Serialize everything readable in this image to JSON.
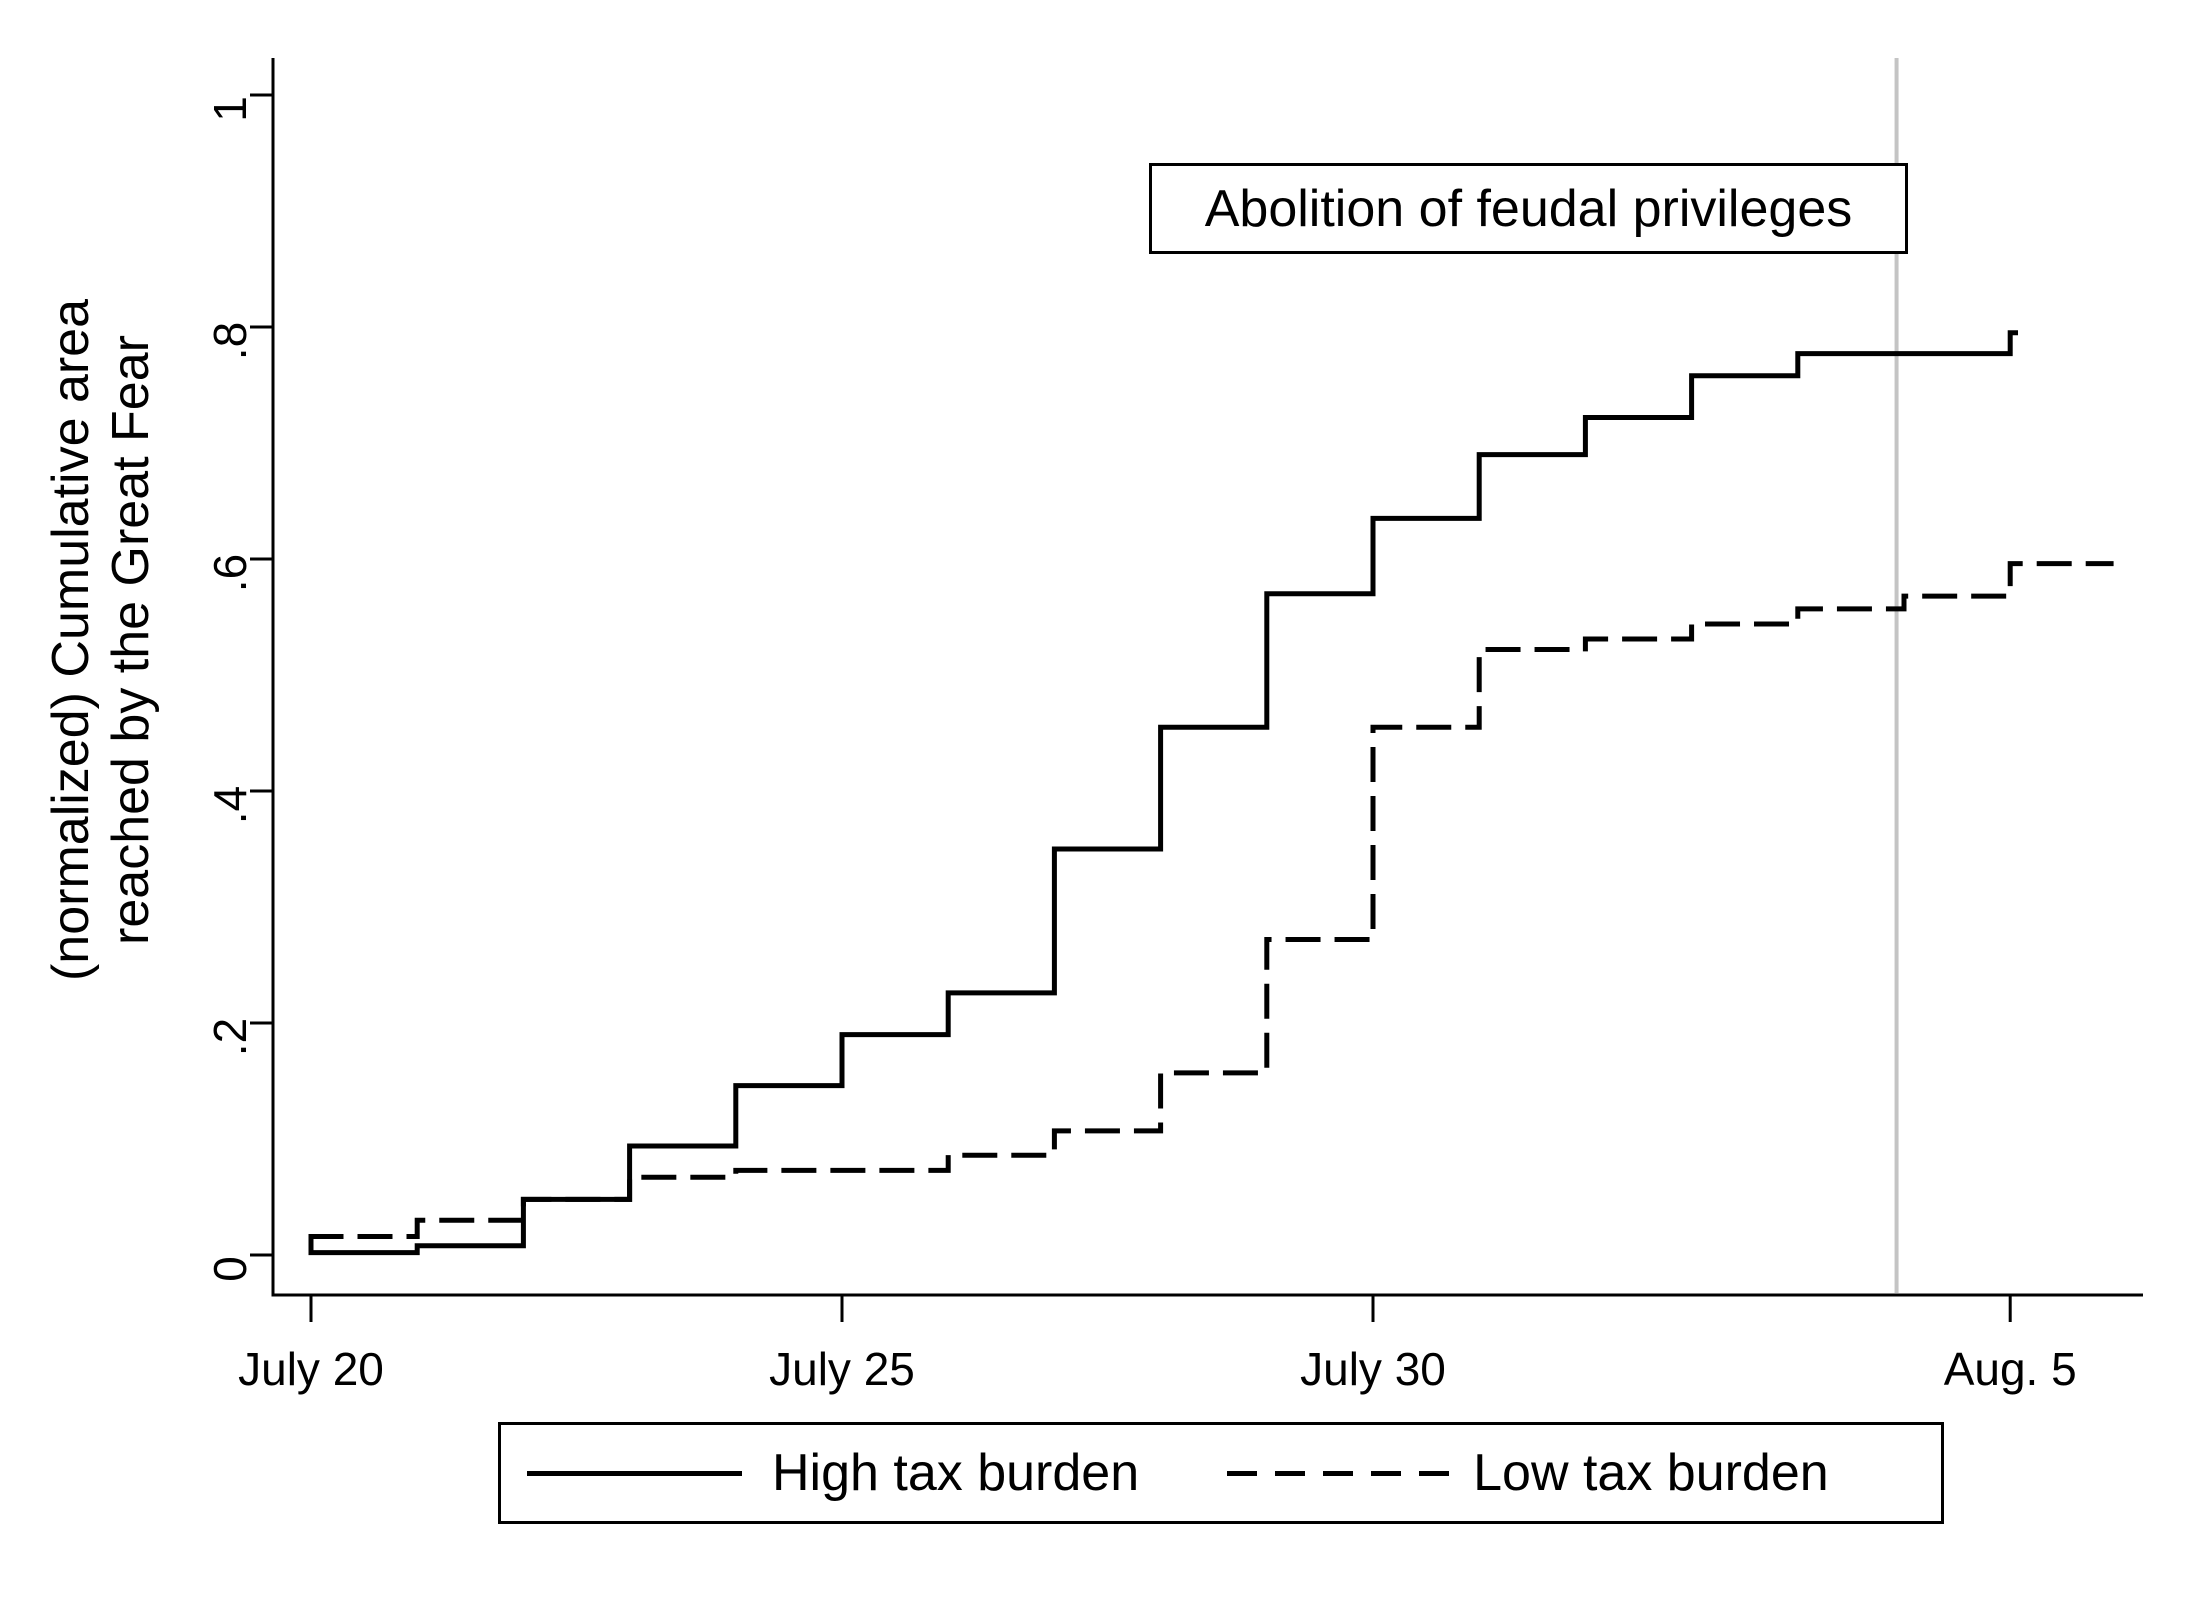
{
  "chart_data": {
    "type": "line",
    "subtype": "step",
    "title": "",
    "y_axis": {
      "title_lines": [
        "(normalized) Cumulative area",
        "reached by the Great Fear"
      ],
      "ticks": [
        {
          "label": "0",
          "value": 0
        },
        {
          "label": ".2",
          "value": 0.2
        },
        {
          "label": ".4",
          "value": 0.4
        },
        {
          "label": ".6",
          "value": 0.6
        },
        {
          "label": ".8",
          "value": 0.8
        },
        {
          "label": "1",
          "value": 1
        }
      ],
      "range": [
        0,
        1.03
      ],
      "grid": "off"
    },
    "x_axis": {
      "unit": "days since July 20, 1789",
      "ticks": [
        {
          "label": "July 20",
          "day": 0
        },
        {
          "label": "July 25",
          "day": 5
        },
        {
          "label": "July 30",
          "day": 10
        },
        {
          "label": "Aug. 5",
          "day": 16
        }
      ],
      "range_days": [
        -0.4,
        17.4
      ],
      "grid": "off"
    },
    "event_line": {
      "label": "Abolition of feudal privileges",
      "day": 14.93,
      "date": "Aug. 4"
    },
    "series": [
      {
        "name": "High tax burden",
        "style": "solid",
        "start_riser_from": 0.016,
        "end_day": 16.05,
        "points_day_value": [
          [
            0,
            0.002
          ],
          [
            1,
            0.008
          ],
          [
            2,
            0.048
          ],
          [
            3,
            0.094
          ],
          [
            4,
            0.146
          ],
          [
            5,
            0.19
          ],
          [
            6,
            0.226
          ],
          [
            7,
            0.35
          ],
          [
            8,
            0.455
          ],
          [
            9,
            0.57
          ],
          [
            10,
            0.635
          ],
          [
            11,
            0.69
          ],
          [
            12,
            0.722
          ],
          [
            13,
            0.758
          ],
          [
            14,
            0.777
          ],
          [
            16,
            0.795
          ]
        ]
      },
      {
        "name": "Low tax burden",
        "style": "dashed",
        "end_day": 16.95,
        "points_day_value": [
          [
            0,
            0.016
          ],
          [
            1,
            0.03
          ],
          [
            2,
            0.048
          ],
          [
            3,
            0.067
          ],
          [
            4,
            0.073
          ],
          [
            6,
            0.086
          ],
          [
            7,
            0.107
          ],
          [
            8,
            0.157
          ],
          [
            9,
            0.272
          ],
          [
            10,
            0.455
          ],
          [
            11,
            0.522
          ],
          [
            12,
            0.531
          ],
          [
            13,
            0.544
          ],
          [
            14,
            0.557
          ],
          [
            15,
            0.568
          ],
          [
            16,
            0.596
          ]
        ]
      }
    ],
    "legend": {
      "position": "bottom",
      "items": [
        {
          "label": "High tax burden",
          "style": "solid"
        },
        {
          "label": "Low tax burden",
          "style": "dashed"
        }
      ]
    },
    "colors": {
      "line": "#000000",
      "event_line": "#c4c4c4",
      "background": "#ffffff",
      "text": "#000000"
    }
  }
}
